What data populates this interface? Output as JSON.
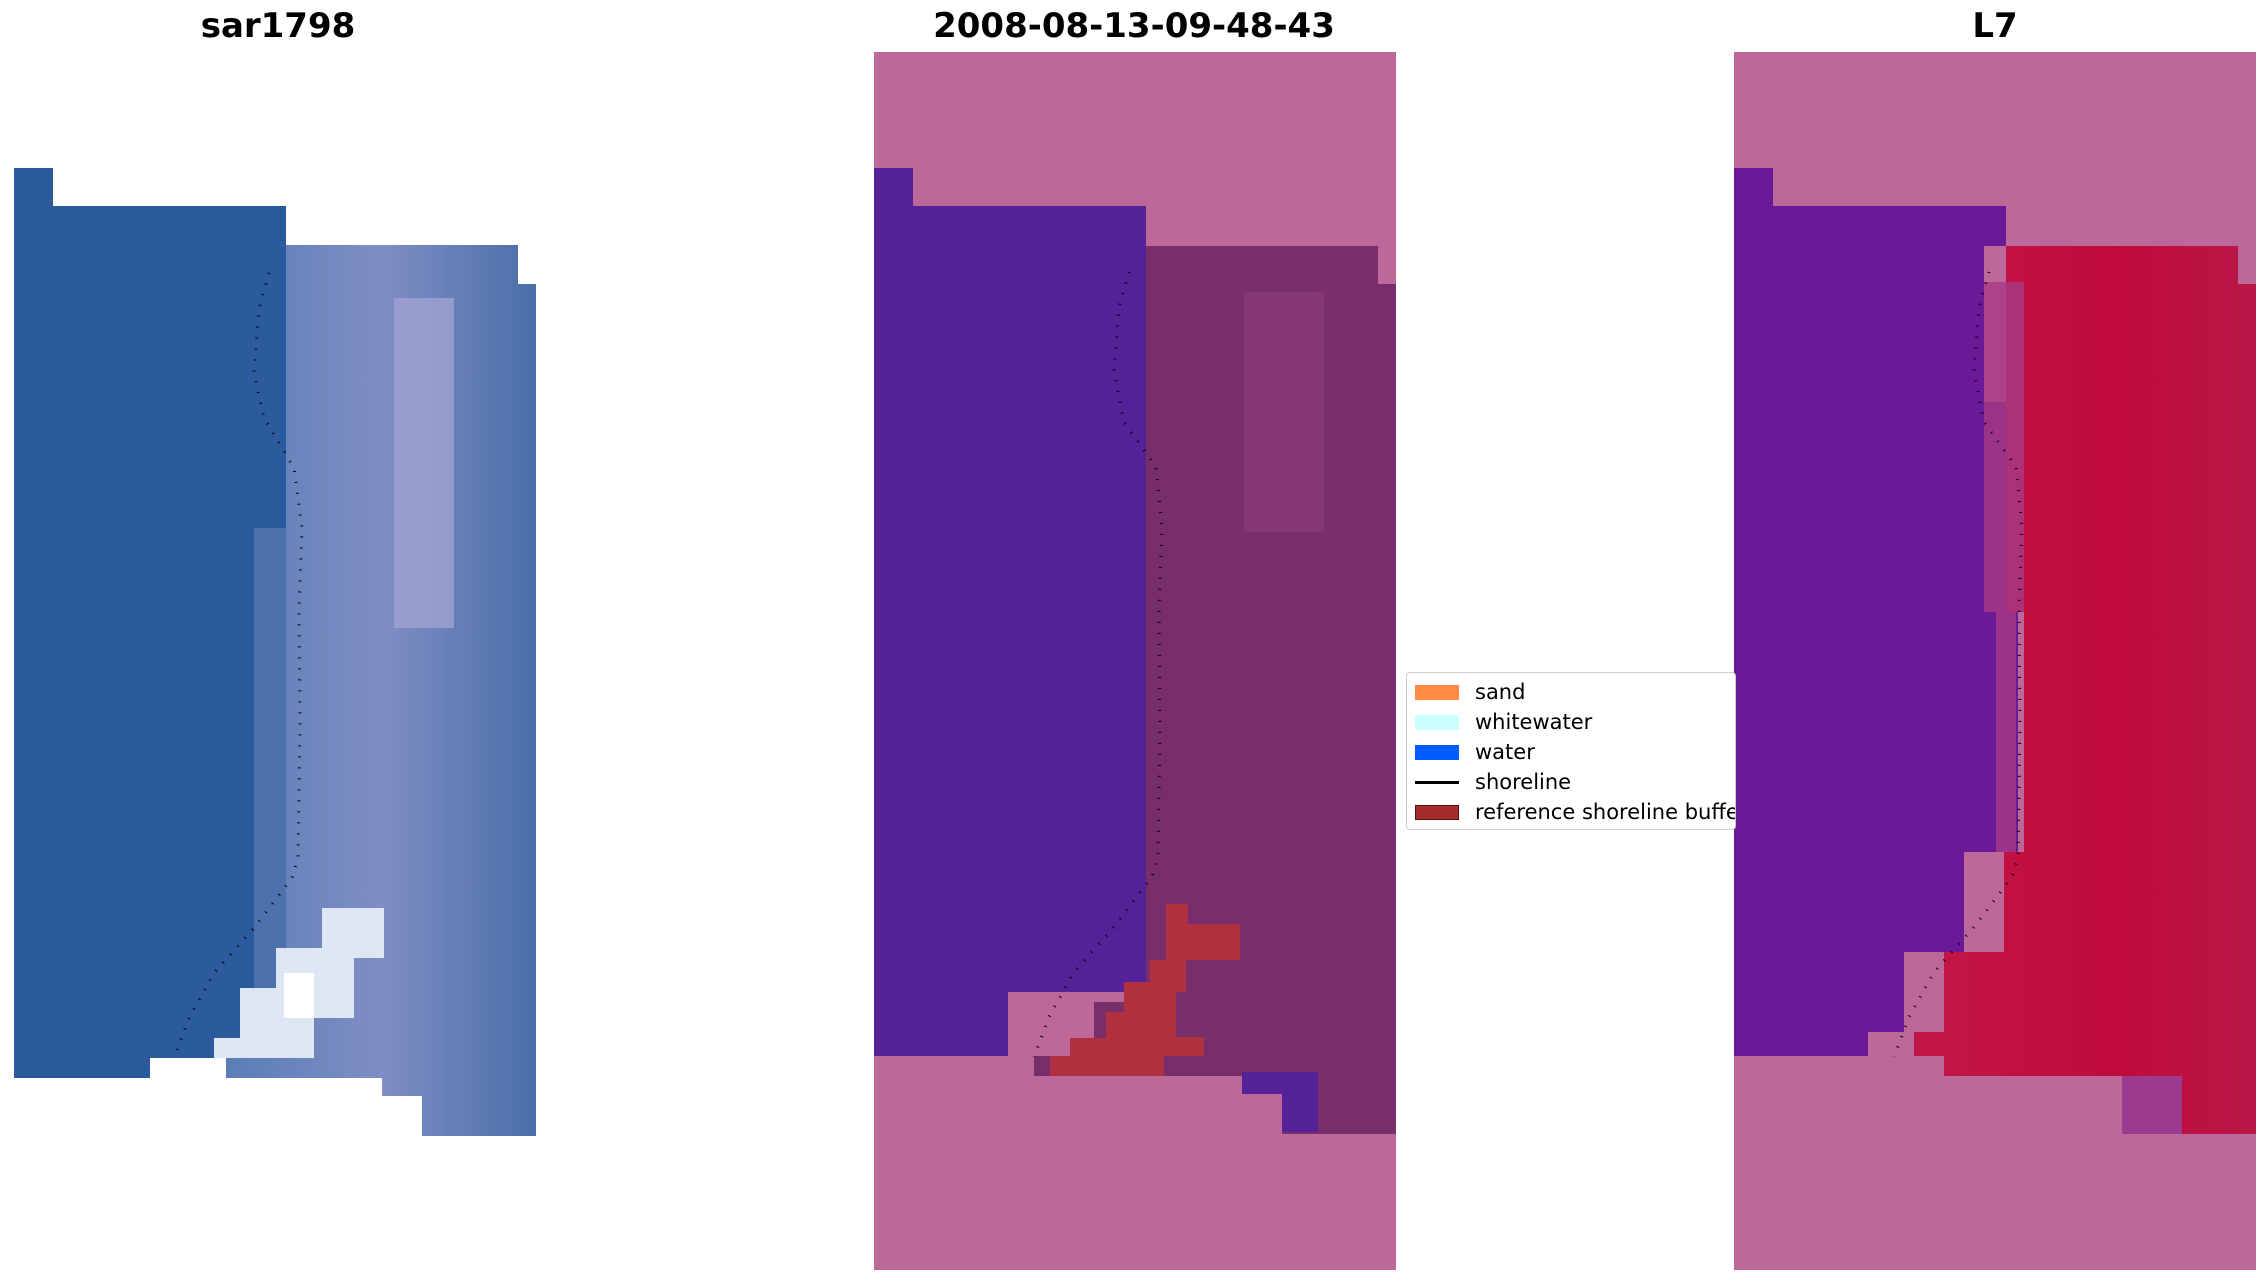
{
  "panels": [
    {
      "title": "sar1798"
    },
    {
      "title": "2008-08-13-09-48-43"
    },
    {
      "title": "L7"
    }
  ],
  "legend": {
    "items": [
      {
        "label": "sand",
        "color": "#ff8c42",
        "kind": "patch"
      },
      {
        "label": "whitewater",
        "color": "#ccffff",
        "kind": "patch"
      },
      {
        "label": "water",
        "color": "#005cff",
        "kind": "patch"
      },
      {
        "label": "shoreline",
        "color": "#000000",
        "kind": "line"
      },
      {
        "label": "reference shoreline buffer",
        "color": "#a52a2a",
        "kind": "patch"
      }
    ]
  },
  "colors": {
    "rgb_water": "#2a5a9c",
    "rgb_surf": "#6f8cc0",
    "rgb_foam": "#e6eef5",
    "class_water": "#542196",
    "class_surf": "#772e6a",
    "class_buffer": "#b03040",
    "class_nodata": "#bc6898",
    "mndwi_neg": "#6a1a9a",
    "mndwi_pos": "#c11040"
  }
}
